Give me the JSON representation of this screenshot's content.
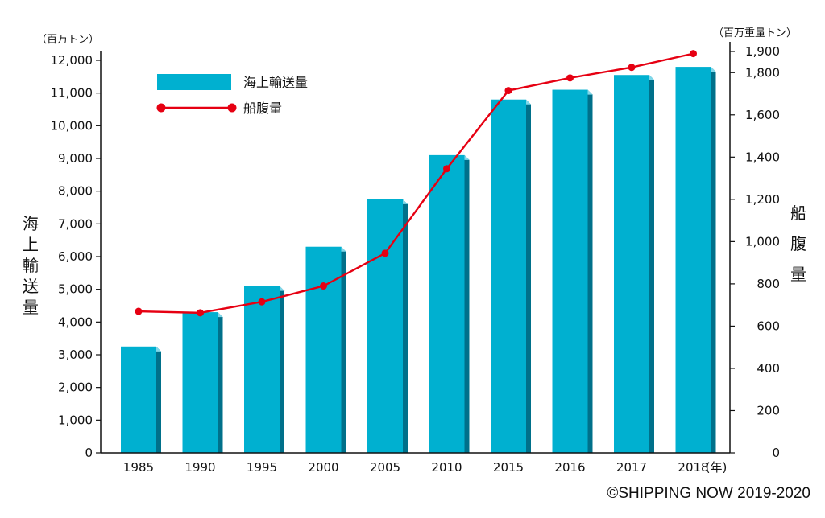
{
  "chart_data": {
    "type": "bar+line",
    "categories": [
      "1985",
      "1990",
      "1995",
      "2000",
      "2005",
      "2010",
      "2015",
      "2016",
      "2017",
      "2018"
    ],
    "x_unit": "(年)",
    "series": [
      {
        "name": "海上輸送量",
        "type": "bar",
        "axis": "left",
        "color": "#00b0d0",
        "values": [
          3250,
          4300,
          5100,
          6300,
          7750,
          9100,
          10800,
          11100,
          11550,
          11800
        ]
      },
      {
        "name": "船腹量",
        "type": "line",
        "axis": "right",
        "color": "#e60012",
        "values": [
          670,
          663,
          715,
          790,
          945,
          1345,
          1715,
          1775,
          1825,
          1890
        ]
      }
    ],
    "left_axis": {
      "label": "海上輸送量",
      "unit": "（百万トン）",
      "ylim": [
        0,
        12000
      ],
      "ticks": [
        "0",
        "1,000",
        "2,000",
        "3,000",
        "4,000",
        "5,000",
        "6,000",
        "7,000",
        "8,000",
        "9,000",
        "10,000",
        "11,000",
        "12,000"
      ]
    },
    "right_axis": {
      "label": "船腹量",
      "unit": "（百万重量トン）",
      "ylim": [
        0,
        1900
      ],
      "ticks": [
        "0",
        "200",
        "400",
        "600",
        "800",
        "1,000",
        "1,200",
        "1,400",
        "1,600",
        "1,800",
        "1,900"
      ]
    },
    "legend_placement": "top-left",
    "grid": false
  },
  "copyright": "©SHIPPING NOW 2019-2020"
}
